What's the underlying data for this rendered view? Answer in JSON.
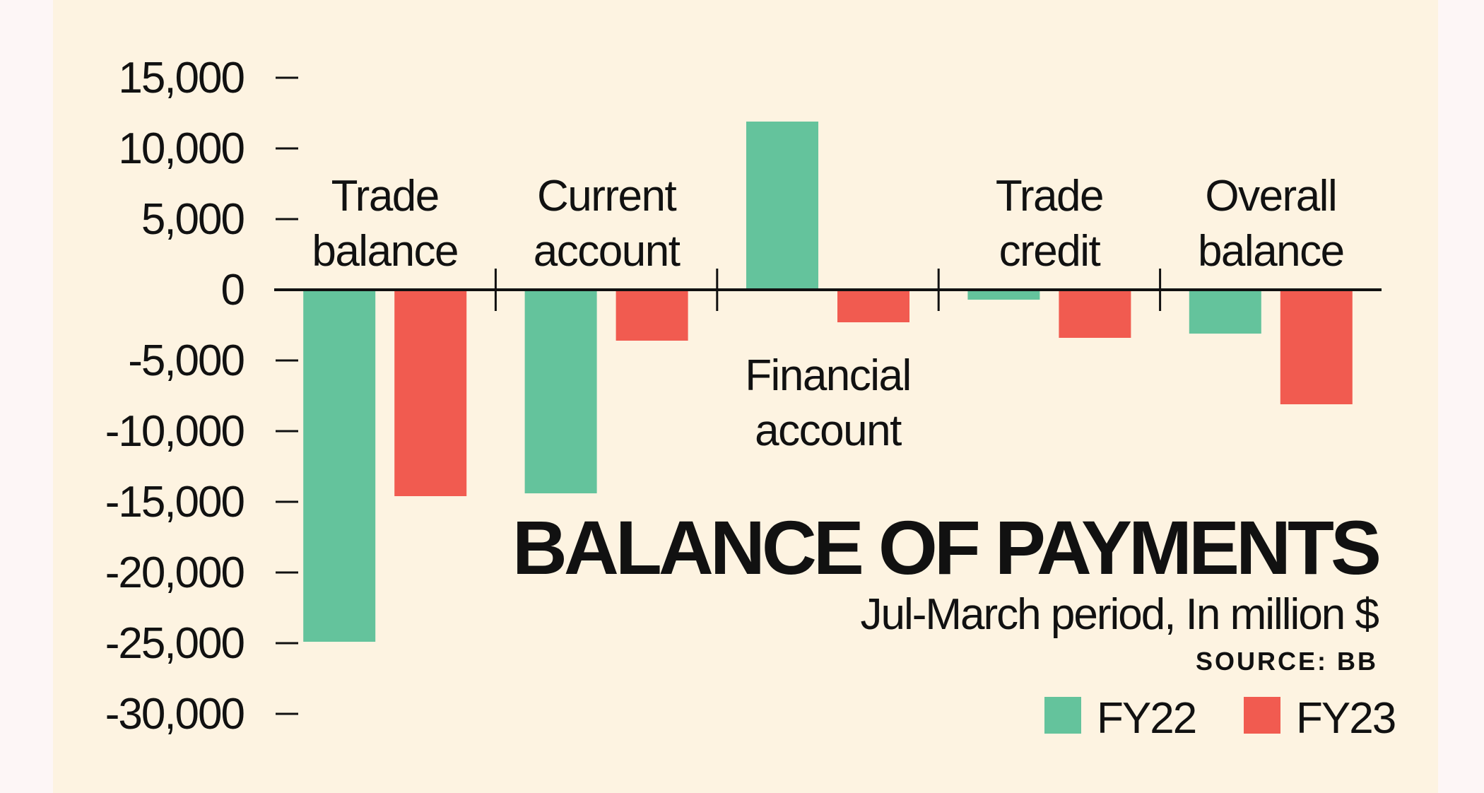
{
  "chart_data": {
    "type": "bar",
    "title": "BALANCE OF PAYMENTS",
    "subtitle": "Jul-March period, In million $",
    "source": "SOURCE: BB",
    "categories": [
      [
        "Trade",
        "balance"
      ],
      [
        "Current",
        "account"
      ],
      [
        "Financial",
        "account"
      ],
      [
        "Trade",
        "credit"
      ],
      [
        "Overall",
        "balance"
      ]
    ],
    "series": [
      {
        "name": "FY22",
        "color": "#64c39c",
        "values": [
          -24900,
          -14400,
          11900,
          -700,
          -3100
        ]
      },
      {
        "name": "FY23",
        "color": "#f15b50",
        "values": [
          -14600,
          -3600,
          -2300,
          -3400,
          -8100
        ]
      }
    ],
    "yticks": [
      "15,000",
      "10,000",
      "5,000",
      "0",
      "-5,000",
      "-10,000",
      "-15,000",
      "-20,000",
      "-25,000",
      "-30,000"
    ],
    "ylim": [
      -30000,
      15000
    ],
    "grid": false,
    "legend": "bottom-right"
  }
}
